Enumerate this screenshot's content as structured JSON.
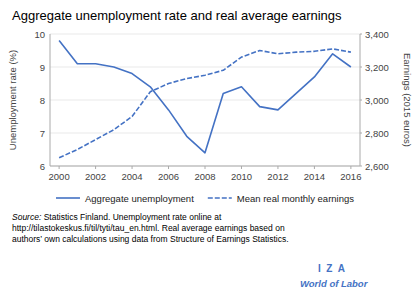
{
  "chart_data": {
    "type": "line",
    "title": "Aggregate unemployment rate and real average earnings",
    "x": [
      2000,
      2001,
      2002,
      2003,
      2004,
      2005,
      2006,
      2007,
      2008,
      2009,
      2010,
      2011,
      2012,
      2013,
      2014,
      2015,
      2016
    ],
    "xlim": [
      1999.5,
      2016.5
    ],
    "xticks": [
      2000,
      2002,
      2004,
      2006,
      2008,
      2010,
      2012,
      2014,
      2016
    ],
    "ylim": [
      6,
      10
    ],
    "yticks": [
      6,
      7,
      8,
      9,
      10
    ],
    "y2lim": [
      2600,
      3400
    ],
    "y2ticks": [
      {
        "value": 2600,
        "label": "2,600"
      },
      {
        "value": 2800,
        "label": "2,800"
      },
      {
        "value": 3000,
        "label": "3,000"
      },
      {
        "value": 3200,
        "label": "3,200"
      },
      {
        "value": 3400,
        "label": "3,400"
      }
    ],
    "y_label": "Unemployment rate (%)",
    "y2_label": "Earnings (2015 euros)",
    "grid": true,
    "legend": "bottom",
    "series": [
      {
        "name": "Aggregate unemployment",
        "color": "#4472c4",
        "line_style": "solid",
        "values": [
          9.8,
          9.1,
          9.1,
          9.0,
          8.8,
          8.4,
          7.7,
          6.9,
          6.4,
          8.2,
          8.4,
          7.8,
          7.7,
          8.2,
          8.7,
          9.4,
          9.0
        ]
      },
      {
        "name": "Mean real monthly earnings",
        "color": "#4472c4",
        "line_style": "dashed",
        "axis": "y2",
        "values": [
          2650,
          2700,
          2760,
          2820,
          2900,
          3050,
          3100,
          3130,
          3150,
          3180,
          3260,
          3300,
          3280,
          3290,
          3295,
          3310,
          3290
        ]
      }
    ],
    "source_label": "Source:",
    "source": " Statistics Finland. Unemployment rate online at\nhttp://tilastokeskus.fi/til/tyti/tau_en.html. Real average earnings based on\nauthors’ own calculations using data from Structure of Earnings Statistics.",
    "logo_text": "I  Z  A",
    "logo_subtext": "World of Labor"
  }
}
